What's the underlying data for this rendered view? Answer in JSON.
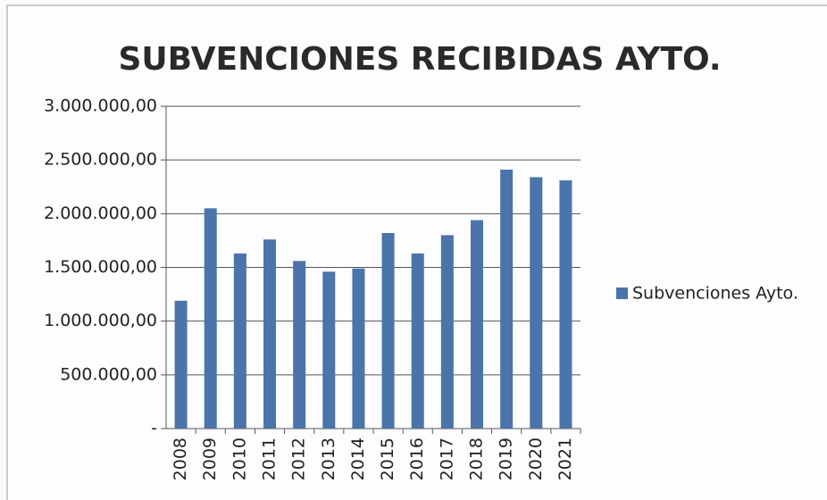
{
  "chart_data": {
    "type": "bar",
    "title": "SUBVENCIONES RECIBIDAS AYTO.",
    "categories": [
      "2008",
      "2009",
      "2010",
      "2011",
      "2012",
      "2013",
      "2014",
      "2015",
      "2016",
      "2017",
      "2018",
      "2019",
      "2020",
      "2021"
    ],
    "series": [
      {
        "name": "Subvenciones Ayto.",
        "color": "#4a74aa",
        "values": [
          1190000,
          2050000,
          1630000,
          1760000,
          1560000,
          1460000,
          1490000,
          1820000,
          1630000,
          1800000,
          1940000,
          2410000,
          2340000,
          2310000
        ]
      }
    ],
    "ylim": [
      0,
      3000000
    ],
    "yticks": [
      {
        "value": 0,
        "label": "-"
      },
      {
        "value": 500000,
        "label": "500.000,00"
      },
      {
        "value": 1000000,
        "label": "1.000.000,00"
      },
      {
        "value": 1500000,
        "label": "1.500.000,00"
      },
      {
        "value": 2000000,
        "label": "2.000.000,00"
      },
      {
        "value": 2500000,
        "label": "2.500.000,00"
      },
      {
        "value": 3000000,
        "label": "3.000.000,00"
      }
    ],
    "grid": true,
    "legend": "right"
  }
}
